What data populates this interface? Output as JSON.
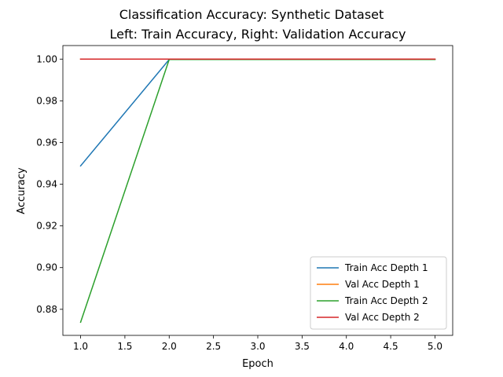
{
  "chart_data": {
    "type": "line",
    "title": "Classification Accuracy: Synthetic Dataset",
    "subtitle": "Left: Train Accuracy, Right: Validation Accuracy",
    "xlabel": "Epoch",
    "ylabel": "Accuracy",
    "xlim": [
      0.8,
      5.2
    ],
    "ylim": [
      0.8675,
      1.0065
    ],
    "xticks": [
      1.0,
      1.5,
      2.0,
      2.5,
      3.0,
      3.5,
      4.0,
      4.5,
      5.0
    ],
    "xtick_labels": [
      "1.0",
      "1.5",
      "2.0",
      "2.5",
      "3.0",
      "3.5",
      "4.0",
      "4.5",
      "5.0"
    ],
    "yticks": [
      0.88,
      0.9,
      0.92,
      0.94,
      0.96,
      0.98,
      1.0
    ],
    "ytick_labels": [
      "0.88",
      "0.90",
      "0.92",
      "0.94",
      "0.96",
      "0.98",
      "1.00"
    ],
    "grid": false,
    "legend_position": "lower-right",
    "x": [
      1,
      2,
      3,
      4,
      5
    ],
    "series": [
      {
        "name": "Train Acc Depth 1",
        "color": "#1f77b4",
        "values": [
          0.9488,
          0.9998,
          0.9998,
          0.9998,
          0.9998
        ]
      },
      {
        "name": "Val Acc Depth 1",
        "color": "#ff7f0e",
        "values": [
          1.0,
          1.0,
          1.0,
          1.0,
          1.0
        ]
      },
      {
        "name": "Train Acc Depth 2",
        "color": "#2ca02c",
        "values": [
          0.8738,
          0.9998,
          0.9998,
          0.9998,
          0.9998
        ]
      },
      {
        "name": "Val Acc Depth 2",
        "color": "#d62728",
        "values": [
          1.0,
          1.0,
          1.0,
          1.0,
          1.0
        ]
      }
    ]
  }
}
